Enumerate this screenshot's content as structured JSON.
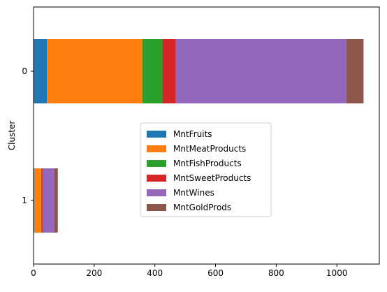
{
  "chart_data": {
    "type": "bar",
    "orientation": "horizontal",
    "stacked": true,
    "categories": [
      "0",
      "1"
    ],
    "ylabel": "Cluster",
    "xlabel": "",
    "title": "",
    "xlim": [
      0,
      1140
    ],
    "xticks": [
      0,
      200,
      400,
      600,
      800,
      1000
    ],
    "grid": false,
    "legend_position": "center",
    "series": [
      {
        "name": "MntFruits",
        "color": "#1f77b4",
        "values": [
          44,
          2
        ]
      },
      {
        "name": "MntMeatProducts",
        "color": "#ff7f0e",
        "values": [
          315,
          23
        ]
      },
      {
        "name": "MntFishProducts",
        "color": "#2ca02c",
        "values": [
          66,
          3
        ]
      },
      {
        "name": "MntSweetProducts",
        "color": "#d62728",
        "values": [
          44,
          4
        ]
      },
      {
        "name": "MntWines",
        "color": "#9467bd",
        "values": [
          562,
          37
        ]
      },
      {
        "name": "MntGoldProds",
        "color": "#8c564b",
        "values": [
          57,
          11
        ]
      }
    ]
  }
}
